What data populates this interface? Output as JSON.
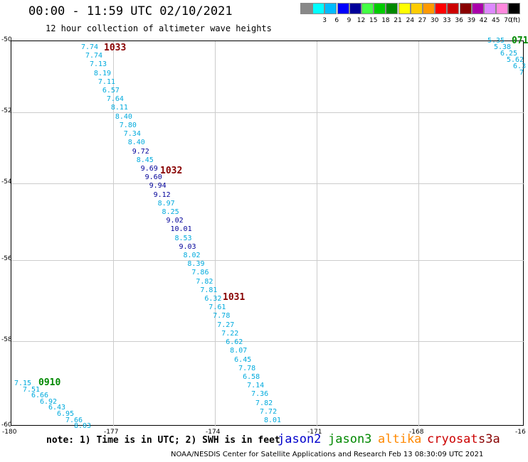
{
  "header": {
    "title": "00:00 - 11:59 UTC 02/10/2021",
    "subtitle": "12 hour collection of altimeter wave heights"
  },
  "scale": {
    "unit": "(ft)",
    "items": [
      {
        "label": "",
        "color": "#888888"
      },
      {
        "label": "3",
        "color": "#00ffff"
      },
      {
        "label": "6",
        "color": "#00bbff"
      },
      {
        "label": "9",
        "color": "#0000ff"
      },
      {
        "label": "12",
        "color": "#000099"
      },
      {
        "label": "15",
        "color": "#44ff44"
      },
      {
        "label": "18",
        "color": "#00cc00"
      },
      {
        "label": "21",
        "color": "#008800"
      },
      {
        "label": "24",
        "color": "#ffff00"
      },
      {
        "label": "27",
        "color": "#ffcc00"
      },
      {
        "label": "30",
        "color": "#ff9900"
      },
      {
        "label": "33",
        "color": "#ff0000"
      },
      {
        "label": "36",
        "color": "#cc0000"
      },
      {
        "label": "39",
        "color": "#880000"
      },
      {
        "label": "42",
        "color": "#aa00aa"
      },
      {
        "label": "45",
        "color": "#dd88ff"
      },
      {
        "label": "70",
        "color": "#ff88dd"
      },
      {
        "label": "",
        "color": "#000000"
      }
    ]
  },
  "axes": {
    "lat_labels": [
      "-50",
      "-52",
      "-54",
      "-56",
      "-58",
      "-60"
    ],
    "lon_labels": [
      "-180",
      "-177",
      "-174",
      "-171",
      "-168",
      "-16"
    ]
  },
  "tracks": [
    {
      "orbit": "1033",
      "orbit_color": "#880000",
      "color": "#00aadd",
      "points": [
        "7.74",
        "7.74",
        "7.13",
        "8.19",
        "7.11",
        "6.57",
        "7.64",
        "8.11",
        "8.40",
        "7.80",
        "7.34",
        "8.40",
        "9.72",
        "8.45",
        "9.69",
        "9.60",
        "9.94",
        "9.12",
        "8.97",
        "8.25",
        "9.02",
        "10.01",
        "8.53",
        "9.03",
        "8.02",
        "8.39",
        "7.86",
        "7.82",
        "7.81",
        "6.32",
        "7.61",
        "7.78",
        "7.27",
        "7.22",
        "6.62",
        "8.07",
        "6.45",
        "7.78",
        "6.58",
        "7.14",
        "7.36",
        "7.82",
        "7.72",
        "8.01"
      ]
    }
  ],
  "orbit_labels": [
    {
      "text": "1033",
      "color": "#880000"
    },
    {
      "text": "1032",
      "color": "#880000"
    },
    {
      "text": "1031",
      "color": "#880000"
    },
    {
      "text": "0910",
      "color": "#008800"
    },
    {
      "text": "071",
      "color": "#008800"
    }
  ],
  "track_sw": {
    "points": [
      "7.15",
      "7.51",
      "6.66",
      "6.92",
      "6.43",
      "6.95",
      "7.66",
      "8.03"
    ],
    "color": "#00aadd"
  },
  "track_ne": {
    "points": [
      "5.35",
      "5.38",
      "6.25",
      "5.62",
      "6.3",
      "7"
    ],
    "color": "#00aadd"
  },
  "dark_points": [
    "9.72",
    "9.69",
    "9.60",
    "9.94",
    "9.12",
    "9.02",
    "10.01",
    "9.03"
  ],
  "dark_color": "#000099",
  "footer": {
    "note": "note: 1) Time is in UTC; 2) SWH is in feet",
    "satellites": [
      {
        "name": "jason2",
        "color": "#0000cc"
      },
      {
        "name": "jason3",
        "color": "#008800"
      },
      {
        "name": "altika",
        "color": "#ff8800"
      },
      {
        "name": "cryosat",
        "color": "#cc0000"
      },
      {
        "name": "s3a",
        "color": "#880000"
      }
    ],
    "credit": "NOAA/NESDIS Center for Satellite Applications and Research    Feb 13 08:30:09 UTC 2021"
  }
}
